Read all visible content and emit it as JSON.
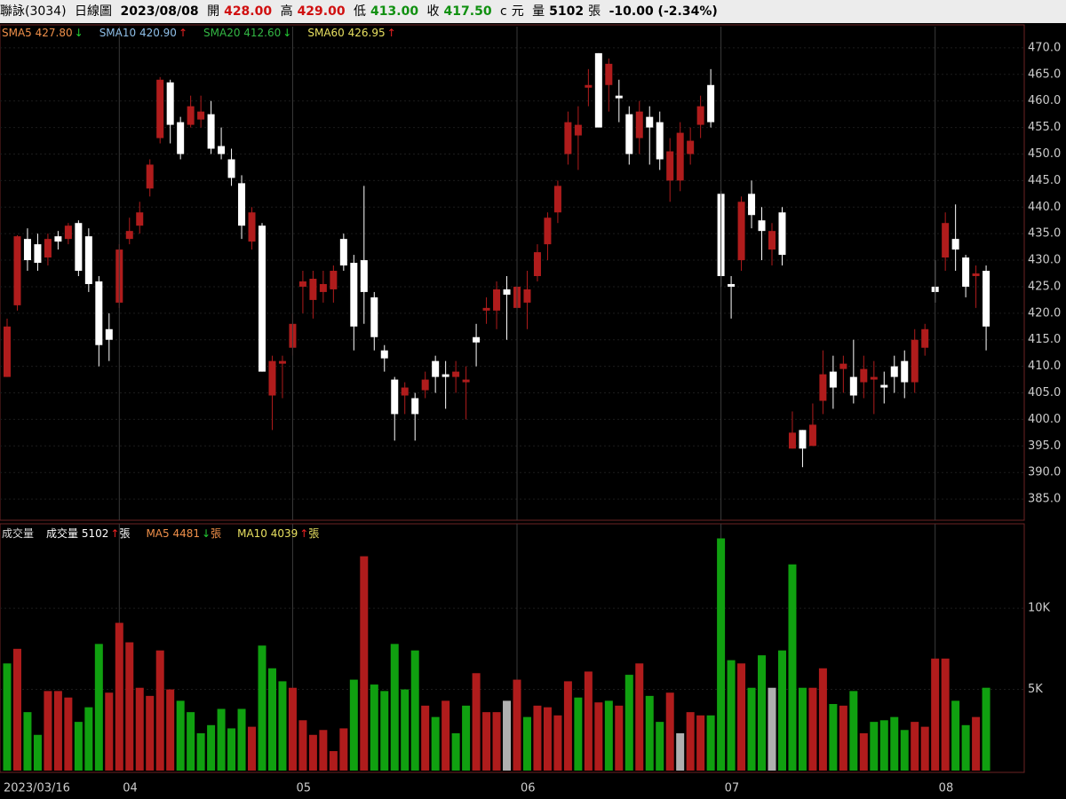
{
  "header": {
    "name": "聯詠(3034)",
    "period": "日線圖",
    "date": "2023/08/08",
    "open_label": "開",
    "open": "428.00",
    "high_label": "高",
    "high": "429.00",
    "low_label": "低",
    "low": "413.00",
    "close_label": "收",
    "close": "417.50",
    "flag": "c",
    "currency": "元",
    "volume_label": "量",
    "volume": "5102",
    "volume_unit": "張",
    "change": "-10.00 (-2.34%)"
  },
  "chart_data": [
    {
      "type": "candlestick",
      "legend": [
        {
          "text": "SMA5 427.80",
          "arrow": "↓",
          "color": "#f0904a",
          "arrow_color": "#22cc33"
        },
        {
          "text": "SMA10 420.90",
          "arrow": "↑",
          "color": "#8fbfe8",
          "arrow_color": "#ee2222"
        },
        {
          "text": "SMA20 412.60",
          "arrow": "↓",
          "color": "#33b844",
          "arrow_color": "#22cc33"
        },
        {
          "text": "SMA60 426.95",
          "arrow": "↑",
          "color": "#e8e060",
          "arrow_color": "#ee2222"
        }
      ],
      "open": [
        408,
        421.5,
        434,
        433,
        430.5,
        434.5,
        434,
        437,
        434.5,
        426,
        417,
        422,
        434,
        436.5,
        443.5,
        453,
        463.5,
        456,
        455.5,
        456.5,
        457.5,
        451.5,
        449,
        444.5,
        433.5,
        436.5,
        404.5,
        410.5,
        413.5,
        425,
        422.5,
        424,
        424.5,
        434,
        429.5,
        430,
        423,
        413,
        407.5,
        404.5,
        404,
        405.5,
        411,
        408.5,
        408,
        407,
        415.5,
        420.5,
        420.5,
        424.5,
        421,
        422,
        427,
        433,
        439,
        450,
        453.5,
        462.5,
        469,
        463,
        461,
        457.5,
        453,
        457,
        456,
        445,
        445,
        450,
        455.5,
        463,
        442.5,
        425.5,
        430,
        442.5,
        437.5,
        432,
        439,
        394.5,
        398,
        395,
        403.5,
        409,
        409.5,
        408,
        407,
        407.5,
        406.5,
        410,
        411,
        407,
        413.5,
        425,
        430.5,
        434,
        430.5,
        427,
        428
      ],
      "high": [
        419,
        434.7,
        436,
        435,
        435,
        435.5,
        437,
        437.5,
        436,
        427,
        420,
        433,
        438,
        441,
        449,
        464.5,
        464,
        457,
        461,
        461,
        460,
        455,
        451,
        446,
        440,
        437,
        412,
        412,
        420,
        428,
        428,
        428,
        429,
        435,
        431,
        444,
        424,
        414,
        408,
        407,
        405,
        409,
        412,
        411,
        411,
        410,
        418,
        423,
        426,
        427,
        428,
        428,
        433,
        439,
        445,
        458,
        459,
        466,
        469,
        468,
        464,
        459,
        460,
        459,
        458,
        453,
        456,
        455,
        461,
        466,
        443,
        427,
        442,
        445,
        440,
        437,
        440,
        401.5,
        398,
        403,
        413,
        412,
        412,
        415,
        412,
        411,
        409,
        412,
        413,
        417,
        418,
        430,
        439,
        440.5,
        431,
        429,
        429
      ],
      "low": [
        408,
        420.5,
        428,
        428,
        429,
        432,
        433,
        427,
        424,
        410,
        411,
        421,
        433,
        435,
        442,
        452,
        452,
        449,
        455,
        455,
        450,
        449,
        444,
        434,
        432,
        409,
        398,
        404,
        412,
        420,
        419,
        422,
        422,
        428,
        413,
        418,
        413,
        409,
        396,
        401,
        396,
        404,
        405,
        402,
        405,
        400,
        410,
        418,
        417,
        415,
        419,
        417,
        426,
        430,
        437,
        448,
        447,
        459,
        455,
        458,
        456,
        448,
        450,
        448,
        447,
        441,
        443,
        448,
        453,
        455,
        425,
        419,
        428,
        436,
        430,
        429,
        429,
        394.5,
        391,
        395,
        401,
        402,
        405,
        403,
        404,
        401,
        403,
        405,
        404,
        405,
        412,
        422,
        428,
        428,
        423,
        421,
        413
      ],
      "close": [
        417.5,
        434.5,
        430,
        429.5,
        434,
        433.5,
        436.5,
        428,
        425.5,
        414,
        415,
        432,
        435.5,
        439,
        448,
        464,
        455.5,
        450,
        459,
        458,
        451,
        450,
        445.5,
        436.5,
        439,
        409,
        411,
        411,
        418,
        426,
        426.5,
        425.5,
        428,
        429,
        417.5,
        424,
        415.5,
        411.5,
        401,
        406,
        401,
        407.5,
        408,
        408,
        409,
        407.5,
        414.5,
        421,
        424.5,
        423.5,
        425,
        424.5,
        431.5,
        438,
        444,
        456,
        455.5,
        463,
        455,
        467,
        460.5,
        450,
        458,
        455,
        449,
        450.5,
        454,
        452.5,
        459,
        456,
        427,
        425,
        441,
        438.5,
        435.5,
        435.5,
        431,
        397.5,
        394.5,
        399,
        408.5,
        406,
        410.5,
        404.5,
        409.5,
        408,
        406,
        408,
        407,
        415,
        417,
        424,
        437,
        432,
        425,
        427.5,
        417.5
      ],
      "up_color": "#b01c1c",
      "down_color": "#ffffff",
      "ylim": [
        381,
        474
      ],
      "yticks": [
        {
          "value": 385,
          "label": "385.0"
        },
        {
          "value": 390,
          "label": "390.0"
        },
        {
          "value": 395,
          "label": "395.0"
        },
        {
          "value": 400,
          "label": "400.0"
        },
        {
          "value": 405,
          "label": "405.0"
        },
        {
          "value": 410,
          "label": "410.0"
        },
        {
          "value": 415,
          "label": "415.0"
        },
        {
          "value": 420,
          "label": "420.0"
        },
        {
          "value": 425,
          "label": "425.0"
        },
        {
          "value": 430,
          "label": "430.0"
        },
        {
          "value": 435,
          "label": "435.0"
        },
        {
          "value": 440,
          "label": "440.0"
        },
        {
          "value": 445,
          "label": "445.0"
        },
        {
          "value": 450,
          "label": "450.0"
        },
        {
          "value": 455,
          "label": "455.0"
        },
        {
          "value": 460,
          "label": "460.0"
        },
        {
          "value": 465,
          "label": "465.0"
        },
        {
          "value": 470,
          "label": "470.0"
        }
      ]
    },
    {
      "type": "bar",
      "title": "成交量",
      "legend": [
        {
          "text": "成交量 5102",
          "arrow": "↑",
          "unit": "張",
          "color": "#ffffff",
          "arrow_color": "#ee2222"
        },
        {
          "text": "MA5 4481",
          "arrow": "↓",
          "unit": "張",
          "color": "#f0904a",
          "arrow_color": "#22cc33"
        },
        {
          "text": "MA10 4039",
          "arrow": "↑",
          "unit": "張",
          "color": "#e8e060",
          "arrow_color": "#ee2222"
        }
      ],
      "categories": [
        "2023/03/16",
        null,
        null,
        null,
        null,
        null,
        null,
        null,
        null,
        null,
        null,
        "04",
        null,
        null,
        null,
        null,
        null,
        null,
        null,
        null,
        null,
        null,
        null,
        null,
        null,
        null,
        null,
        null,
        "05",
        null,
        null,
        null,
        null,
        null,
        null,
        null,
        null,
        null,
        null,
        null,
        null,
        null,
        null,
        null,
        null,
        null,
        null,
        null,
        null,
        null,
        "06",
        null,
        null,
        null,
        null,
        null,
        null,
        null,
        null,
        null,
        null,
        null,
        null,
        null,
        null,
        null,
        null,
        null,
        null,
        null,
        "07",
        null,
        null,
        null,
        null,
        null,
        null,
        null,
        null,
        null,
        null,
        null,
        null,
        null,
        null,
        null,
        null,
        null,
        null,
        null,
        null,
        "08",
        null,
        null,
        null,
        null,
        null
      ],
      "values": [
        6600,
        7500,
        3600,
        2200,
        4900,
        4900,
        4500,
        3000,
        3900,
        7800,
        4800,
        9100,
        7900,
        5100,
        4600,
        7400,
        5000,
        4300,
        3600,
        2300,
        2800,
        3800,
        2600,
        3800,
        2700,
        7700,
        6300,
        5500,
        5100,
        3100,
        2200,
        2500,
        1200,
        2600,
        5600,
        13200,
        5300,
        4900,
        7800,
        5000,
        7400,
        4000,
        3300,
        4300,
        2300,
        4000,
        6000,
        3600,
        3600,
        4300,
        5600,
        3300,
        4000,
        3900,
        3400,
        5500,
        4500,
        6100,
        4200,
        4300,
        4000,
        5900,
        6600,
        4600,
        3000,
        4800,
        2300,
        3600,
        3400,
        3400,
        14300,
        6800,
        6600,
        5100,
        7100,
        5100,
        7400,
        12700,
        5100,
        5100,
        6300,
        4100,
        4000,
        4900,
        2300,
        3000,
        3100,
        3300,
        2500,
        3000,
        2700,
        6900,
        6900,
        4300,
        2800,
        3300,
        5102
      ],
      "colors": [
        "#10a010",
        "#b01c1c",
        "#10a010",
        "#10a010",
        "#b01c1c",
        "#b01c1c",
        "#b01c1c",
        "#10a010",
        "#10a010",
        "#10a010",
        "#b01c1c",
        "#b01c1c",
        "#b01c1c",
        "#b01c1c",
        "#b01c1c",
        "#b01c1c",
        "#b01c1c",
        "#10a010",
        "#10a010",
        "#10a010",
        "#10a010",
        "#10a010",
        "#10a010",
        "#10a010",
        "#b01c1c",
        "#10a010",
        "#10a010",
        "#10a010",
        "#b01c1c",
        "#b01c1c",
        "#b01c1c",
        "#b01c1c",
        "#b01c1c",
        "#b01c1c",
        "#10a010",
        "#b01c1c",
        "#10a010",
        "#10a010",
        "#10a010",
        "#10a010",
        "#10a010",
        "#b01c1c",
        "#10a010",
        "#b01c1c",
        "#10a010",
        "#10a010",
        "#b01c1c",
        "#b01c1c",
        "#b01c1c",
        "#b0b0b0",
        "#b01c1c",
        "#10a010",
        "#b01c1c",
        "#b01c1c",
        "#b01c1c",
        "#b01c1c",
        "#10a010",
        "#b01c1c",
        "#b01c1c",
        "#10a010",
        "#b01c1c",
        "#10a010",
        "#b01c1c",
        "#10a010",
        "#10a010",
        "#b01c1c",
        "#b0b0b0",
        "#b01c1c",
        "#b01c1c",
        "#10a010",
        "#10a010",
        "#10a010",
        "#b01c1c",
        "#10a010",
        "#10a010",
        "#b0b0b0",
        "#10a010",
        "#10a010",
        "#10a010",
        "#b01c1c",
        "#b01c1c",
        "#10a010",
        "#b01c1c",
        "#10a010",
        "#b01c1c",
        "#10a010",
        "#10a010",
        "#10a010",
        "#10a010",
        "#b01c1c",
        "#b01c1c",
        "#b01c1c",
        "#b01c1c",
        "#10a010",
        "#10a010",
        "#b01c1c",
        "#10a010"
      ],
      "ylim": [
        0,
        15200
      ],
      "yticks": [
        {
          "value": 5000,
          "label": "5K"
        },
        {
          "value": 10000,
          "label": "10K"
        }
      ]
    }
  ]
}
